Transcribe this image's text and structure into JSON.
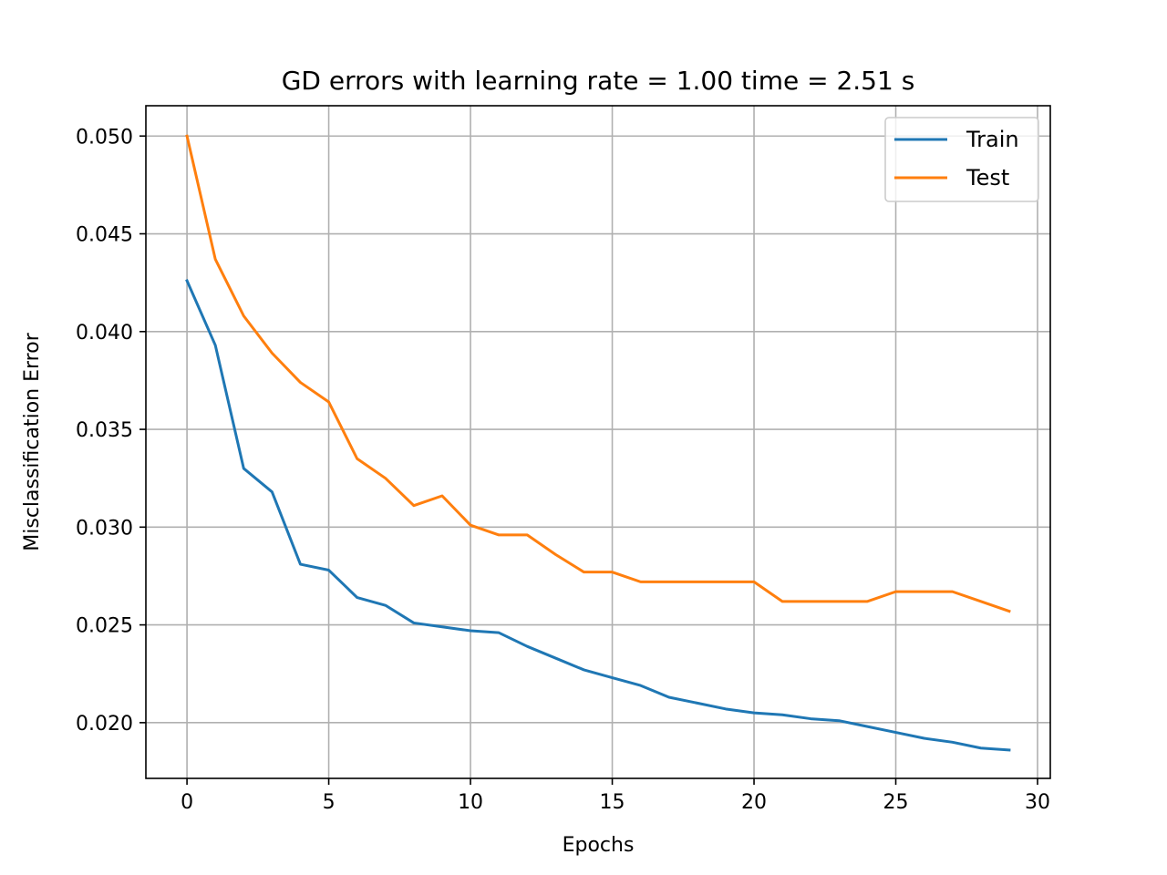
{
  "chart_data": {
    "type": "line",
    "title": "GD errors with learning rate = 1.00 time = 2.51 s",
    "xlabel": "Epochs",
    "ylabel": "Misclassification Error",
    "xlim": [
      -1.45,
      30.45
    ],
    "ylim": [
      0.01715,
      0.05155
    ],
    "xticks": [
      0,
      5,
      10,
      15,
      20,
      25,
      30
    ],
    "xtick_labels": [
      "0",
      "5",
      "10",
      "15",
      "20",
      "25",
      "30"
    ],
    "yticks": [
      0.02,
      0.025,
      0.03,
      0.035,
      0.04,
      0.045,
      0.05
    ],
    "ytick_labels": [
      "0.020",
      "0.025",
      "0.030",
      "0.035",
      "0.040",
      "0.045",
      "0.050"
    ],
    "grid": true,
    "legend_position": "top-right",
    "x": [
      0,
      1,
      2,
      3,
      4,
      5,
      6,
      7,
      8,
      9,
      10,
      11,
      12,
      13,
      14,
      15,
      16,
      17,
      18,
      19,
      20,
      21,
      22,
      23,
      24,
      25,
      26,
      27,
      28,
      29
    ],
    "series": [
      {
        "name": "Train",
        "color": "#1f77b4",
        "values": [
          0.0426,
          0.0393,
          0.033,
          0.0318,
          0.0281,
          0.0278,
          0.0264,
          0.026,
          0.0251,
          0.0249,
          0.0247,
          0.0246,
          0.0239,
          0.0233,
          0.0227,
          0.0223,
          0.0219,
          0.0213,
          0.021,
          0.0207,
          0.0205,
          0.0204,
          0.0202,
          0.0201,
          0.0198,
          0.0195,
          0.0192,
          0.019,
          0.0187,
          0.0186
        ]
      },
      {
        "name": "Test",
        "color": "#ff7f0e",
        "values": [
          0.05,
          0.0437,
          0.0408,
          0.0389,
          0.0374,
          0.0364,
          0.0335,
          0.0325,
          0.0311,
          0.0316,
          0.0301,
          0.0296,
          0.0296,
          0.0286,
          0.0277,
          0.0277,
          0.0272,
          0.0272,
          0.0272,
          0.0272,
          0.0272,
          0.0262,
          0.0262,
          0.0262,
          0.0262,
          0.0267,
          0.0267,
          0.0267,
          0.0262,
          0.0257
        ]
      }
    ]
  }
}
